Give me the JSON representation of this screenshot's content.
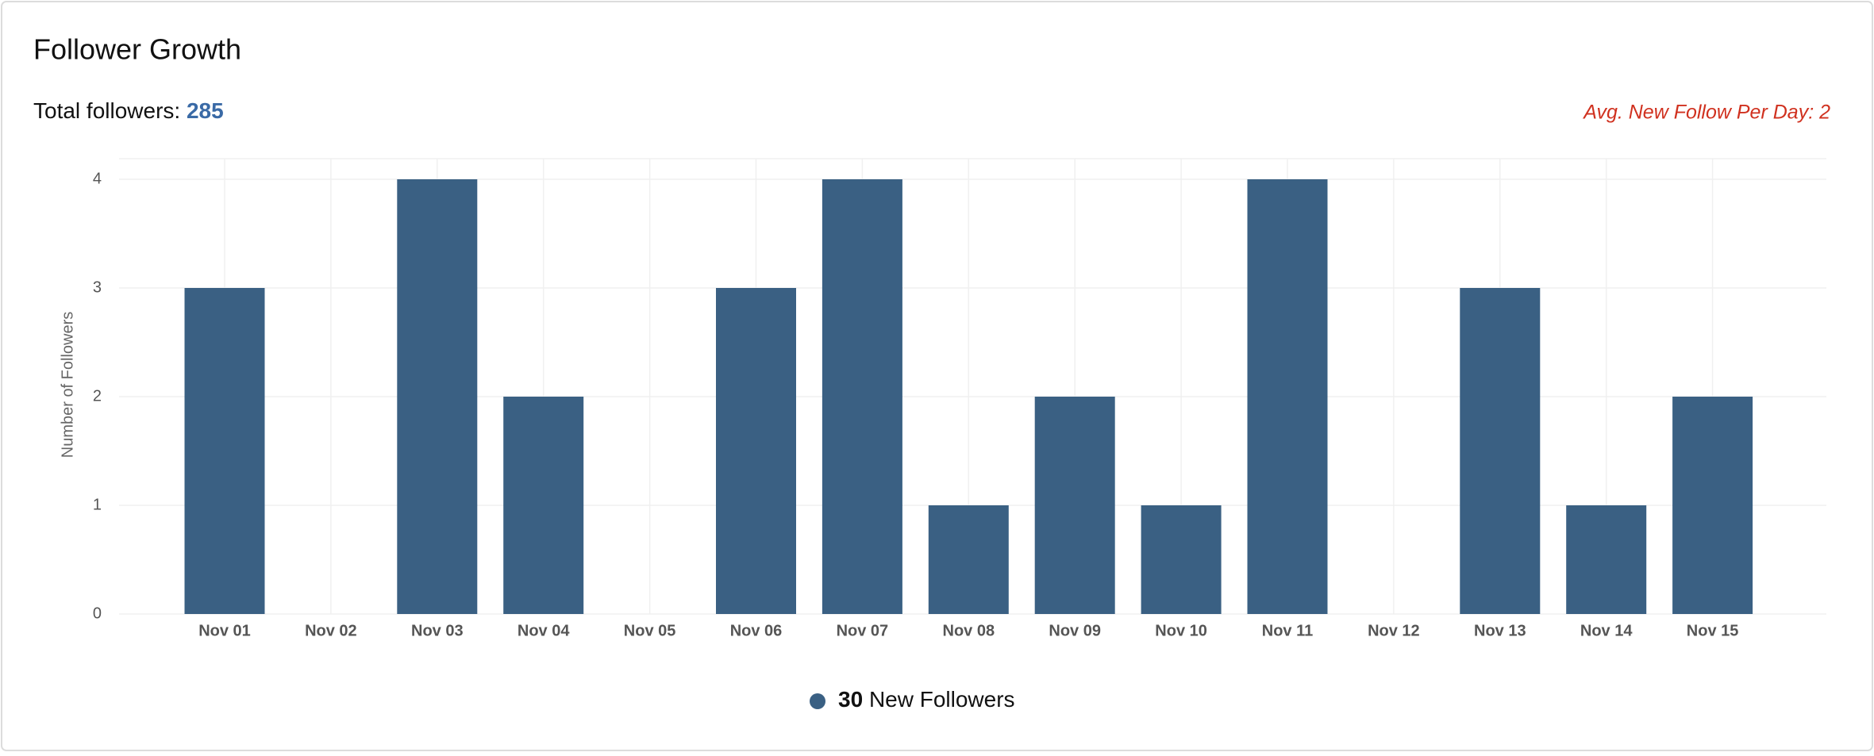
{
  "chart_data": {
    "type": "bar",
    "title": "Follower Growth",
    "total_label": "Total followers:",
    "total_value": "285",
    "average_note": "Avg. New Follow Per Day: 2",
    "y_label": "Number of Followers",
    "categories": [
      "Nov 01",
      "Nov 02",
      "Nov 03",
      "Nov 04",
      "Nov 05",
      "Nov 06",
      "Nov 07",
      "Nov 08",
      "Nov 09",
      "Nov 10",
      "Nov 11",
      "Nov 12",
      "Nov 13",
      "Nov 14",
      "Nov 15"
    ],
    "series": [
      {
        "name": "New Followers",
        "color": "#3a6083",
        "total": "30",
        "values": [
          3,
          0,
          4,
          2,
          0,
          3,
          4,
          1,
          2,
          1,
          4,
          0,
          3,
          1,
          2
        ]
      }
    ],
    "ylim": [
      0,
      4
    ],
    "yticks": [
      0,
      1,
      2,
      3,
      4
    ],
    "grid": true
  }
}
